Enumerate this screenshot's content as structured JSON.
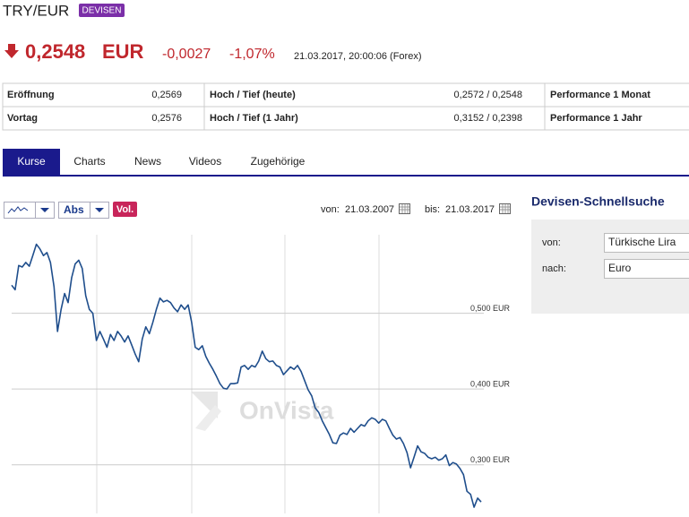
{
  "header": {
    "title": "TRY/EUR",
    "badge": "DEVISEN"
  },
  "quote": {
    "price": "0,2548",
    "currency": "EUR",
    "change": "-0,0027",
    "change_pct": "-1,07%",
    "timestamp": "21.03.2017, 20:00:06 (Forex)"
  },
  "table": {
    "rows": [
      [
        "Eröffnung",
        "0,2569",
        "Hoch / Tief (heute)",
        "0,2572 / 0,2548",
        "Performance 1 Monat"
      ],
      [
        "Vortag",
        "0,2576",
        "Hoch / Tief (1 Jahr)",
        "0,3152 / 0,2398",
        "Performance 1 Jahr"
      ]
    ]
  },
  "tabs": [
    "Kurse",
    "Charts",
    "News",
    "Videos",
    "Zugehörige"
  ],
  "controls": {
    "abs": "Abs",
    "vol": "Vol.",
    "from_label": "von:",
    "from_date": "21.03.2007",
    "to_label": "bis:",
    "to_date": "21.03.2017"
  },
  "quick_search": {
    "title": "Devisen-Schnellsuche",
    "from_label": "von:",
    "from_value": "Türkische Lira",
    "to_label": "nach:",
    "to_value": "Euro"
  },
  "watermark": "OnVista",
  "chart_data": {
    "type": "line",
    "color": "#1f4e8c",
    "values": [
      0.537,
      0.531,
      0.563,
      0.561,
      0.567,
      0.562,
      0.576,
      0.591,
      0.585,
      0.576,
      0.58,
      0.567,
      0.535,
      0.476,
      0.505,
      0.526,
      0.514,
      0.547,
      0.565,
      0.57,
      0.559,
      0.523,
      0.505,
      0.5,
      0.464,
      0.476,
      0.466,
      0.455,
      0.472,
      0.464,
      0.476,
      0.47,
      0.462,
      0.47,
      0.458,
      0.446,
      0.436,
      0.466,
      0.482,
      0.473,
      0.488,
      0.505,
      0.52,
      0.515,
      0.517,
      0.514,
      0.507,
      0.502,
      0.511,
      0.505,
      0.511,
      0.488,
      0.455,
      0.452,
      0.457,
      0.443,
      0.434,
      0.426,
      0.417,
      0.407,
      0.401,
      0.4,
      0.407,
      0.407,
      0.408,
      0.429,
      0.431,
      0.426,
      0.431,
      0.429,
      0.437,
      0.45,
      0.44,
      0.436,
      0.437,
      0.431,
      0.429,
      0.419,
      0.424,
      0.429,
      0.426,
      0.431,
      0.423,
      0.411,
      0.399,
      0.391,
      0.375,
      0.369,
      0.358,
      0.349,
      0.34,
      0.329,
      0.328,
      0.339,
      0.342,
      0.34,
      0.348,
      0.343,
      0.348,
      0.353,
      0.351,
      0.358,
      0.362,
      0.36,
      0.355,
      0.36,
      0.358,
      0.348,
      0.339,
      0.334,
      0.336,
      0.328,
      0.316,
      0.296,
      0.31,
      0.325,
      0.317,
      0.315,
      0.31,
      0.308,
      0.31,
      0.306,
      0.308,
      0.313,
      0.299,
      0.303,
      0.301,
      0.295,
      0.287,
      0.265,
      0.261,
      0.244,
      0.256,
      0.251
    ],
    "ylim": [
      0.237,
      0.6
    ],
    "yticks": [
      {
        "value": 0.5,
        "label": "0,500 EUR"
      },
      {
        "value": 0.4,
        "label": "0,400 EUR"
      },
      {
        "value": 0.3,
        "label": "0,300 EUR"
      }
    ],
    "grid": true
  }
}
